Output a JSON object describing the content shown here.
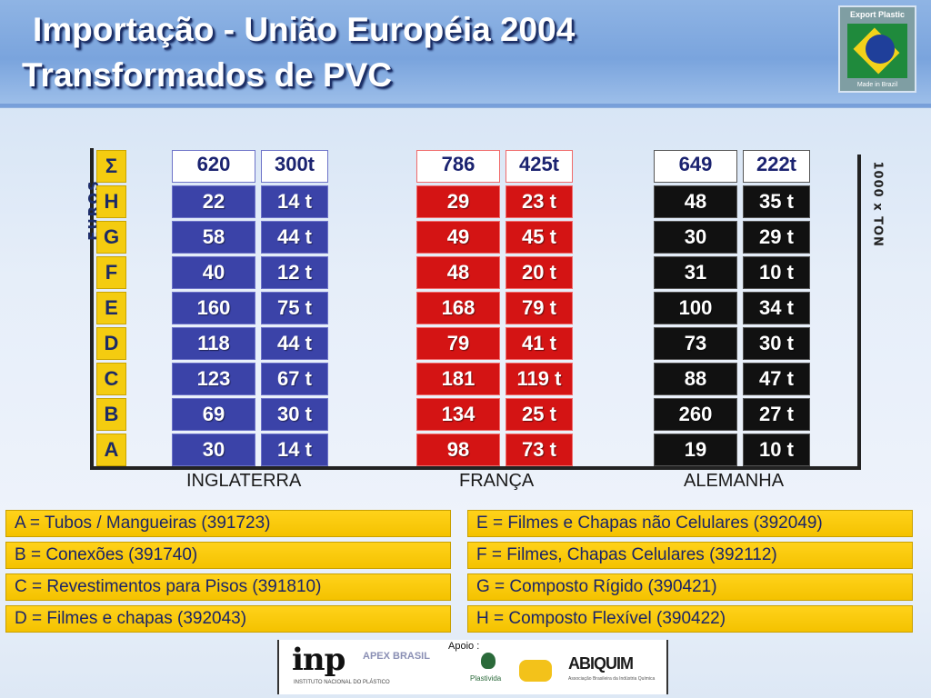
{
  "header": {
    "title_line1": "Importação - União Européia 2004",
    "title_line2": "Transformados de PVC",
    "logo_text": "Export Plastic",
    "logo_subtext": "Made in Brazil"
  },
  "chart_data": {
    "type": "table",
    "units": {
      "left": "EUROS",
      "right": "1000 x TON"
    },
    "rows": [
      "Σ",
      "H",
      "G",
      "F",
      "E",
      "D",
      "C",
      "B",
      "A"
    ],
    "countries": [
      {
        "key": "uk",
        "name": "INGLATERRA",
        "color": "#3b43a8",
        "euros": [
          "620",
          "22",
          "58",
          "40",
          "160",
          "118",
          "123",
          "69",
          "30"
        ],
        "tons": [
          "300t",
          "14 t",
          "44 t",
          "12 t",
          "75 t",
          "44 t",
          "67 t",
          "30 t",
          "14 t"
        ]
      },
      {
        "key": "fr",
        "name": "FRANÇA",
        "color": "#d41414",
        "euros": [
          "786",
          "29",
          "49",
          "48",
          "168",
          "79",
          "181",
          "134",
          "98"
        ],
        "tons": [
          "425t",
          "23 t",
          "45 t",
          "20 t",
          "79 t",
          "41 t",
          "119 t",
          "25 t",
          "73 t"
        ]
      },
      {
        "key": "de",
        "name": "ALEMANHA",
        "color": "#111111",
        "euros": [
          "649",
          "48",
          "30",
          "31",
          "100",
          "73",
          "88",
          "260",
          "19"
        ],
        "tons": [
          "222t",
          "35 t",
          "29 t",
          "10 t",
          "34 t",
          "30 t",
          "47 t",
          "27 t",
          "10 t"
        ]
      }
    ]
  },
  "legend": {
    "left": [
      "A = Tubos / Mangueiras (391723)",
      "B = Conexões (391740)",
      "C = Revestimentos para Pisos (391810)",
      "D = Filmes e chapas  (392043)"
    ],
    "right": [
      "E = Filmes e Chapas não Celulares (392049)",
      "F = Filmes, Chapas Celulares (392112)",
      "G = Composto Rígido (390421)",
      "H = Composto Flexível (390422)"
    ]
  },
  "sponsors": {
    "inp": "inp",
    "inp_sub": "INSTITUTO NACIONAL DO PLÁSTICO",
    "apex": "APEX BRASIL",
    "apoio": "Apoio :",
    "plastivida": "Plastivida",
    "abiquim": "ABIQUIM",
    "abiquim_sub": "Associação Brasileira da Indústria Química"
  }
}
